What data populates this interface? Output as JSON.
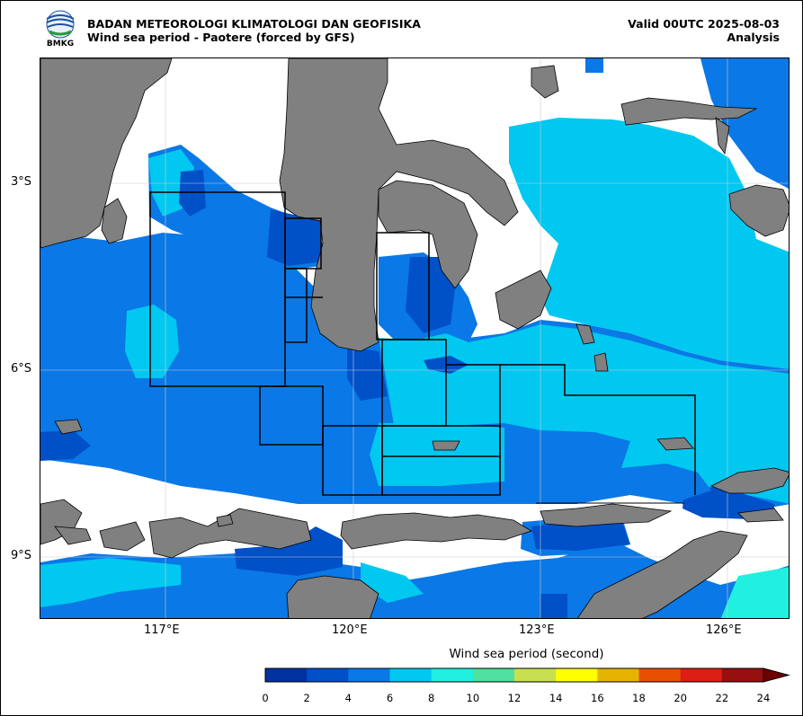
{
  "header": {
    "agency": "BADAN METEOROLOGI KLIMATOLOGI DAN GEOFISIKA",
    "subtitle": "Wind sea period - Paotere (forced by GFS)",
    "valid": "Valid 00UTC 2025-08-03",
    "mode": "Analysis",
    "logo_text": "BMKG"
  },
  "map": {
    "lon_ticks": [
      "117°E",
      "120°E",
      "123°E",
      "126°E"
    ],
    "lat_ticks": [
      "3°S",
      "6°S",
      "9°S"
    ],
    "land_color": "#808080",
    "region_names": []
  },
  "colorbar": {
    "title": "Wind sea period (second)",
    "ticks": [
      "0",
      "2",
      "4",
      "6",
      "8",
      "10",
      "12",
      "14",
      "16",
      "18",
      "20",
      "22",
      "24"
    ],
    "colors": [
      "#0032a0",
      "#0050c8",
      "#0a78e6",
      "#00c8f0",
      "#20f0e0",
      "#50e0a0",
      "#c8e050",
      "#ffff00",
      "#e6b400",
      "#e65000",
      "#dc1e14",
      "#961010"
    ],
    "extend_color": "#6e0000"
  }
}
